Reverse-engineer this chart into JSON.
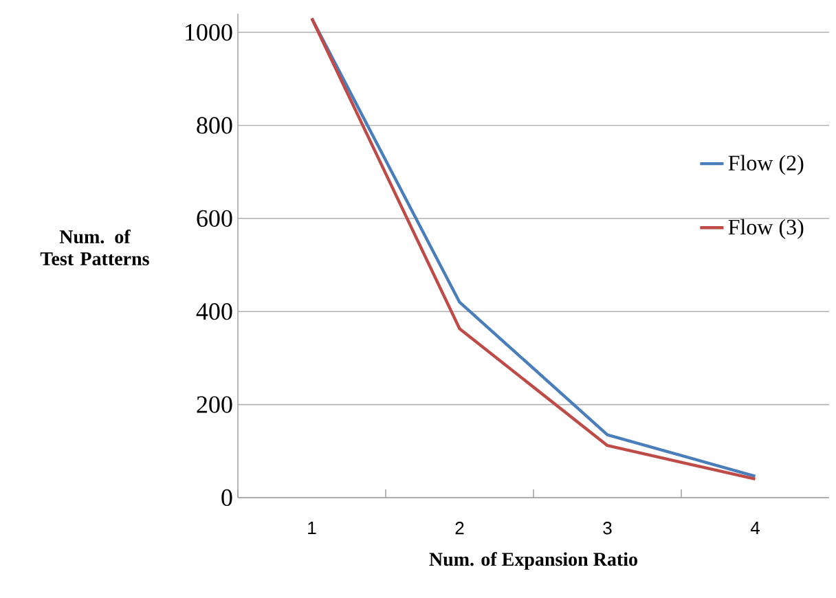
{
  "chart_data": {
    "type": "line",
    "xlabel": "Num. of Expansion Ratio",
    "ylabel": "Num. of Test Patterns",
    "categories": [
      "1",
      "2",
      "3",
      "4"
    ],
    "series": [
      {
        "name": "Flow (2)",
        "color": "#4a7ebb",
        "values": [
          1030,
          420,
          135,
          46
        ]
      },
      {
        "name": "Flow (3)",
        "color": "#be4b48",
        "values": [
          1030,
          363,
          112,
          40
        ]
      }
    ],
    "ylim": [
      0,
      1040
    ],
    "yticks": [
      0,
      200,
      400,
      600,
      800,
      1000
    ],
    "grid": "y",
    "legend": "right",
    "marker": "none",
    "line_style": "solid"
  }
}
